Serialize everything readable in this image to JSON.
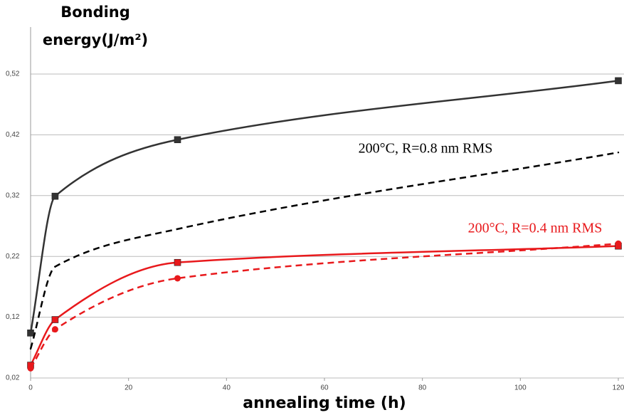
{
  "chart_data": {
    "type": "line",
    "ylabel": [
      "Bonding",
      "energy(J/m²)"
    ],
    "xlabel": "annealing time (h)",
    "xlim": [
      0,
      120
    ],
    "xticks": [
      0,
      20,
      40,
      60,
      80,
      100,
      120
    ],
    "ylim": [
      0.02,
      0.52
    ],
    "yticks": [
      {
        "value": 0.02,
        "label": "0,02"
      },
      {
        "value": 0.12,
        "label": "0,12"
      },
      {
        "value": 0.22,
        "label": "0,22"
      },
      {
        "value": 0.32,
        "label": "0,32"
      },
      {
        "value": 0.42,
        "label": "0,42"
      },
      {
        "value": 0.52,
        "label": "0,52"
      }
    ],
    "grid": true,
    "series": [
      {
        "color": "#333333",
        "dash": false,
        "marker": "square",
        "x": [
          0,
          5,
          30,
          120
        ],
        "values": [
          0.094,
          0.319,
          0.412,
          0.509
        ]
      },
      {
        "color": "#000000",
        "dash": true,
        "marker": "none",
        "x": [
          0,
          5,
          30,
          120
        ],
        "values": [
          0.068,
          0.203,
          0.265,
          0.391
        ]
      },
      {
        "color": "#e8191c",
        "dash": false,
        "marker": "square",
        "x": [
          0,
          5,
          30,
          120
        ],
        "values": [
          0.041,
          0.116,
          0.21,
          0.237
        ]
      },
      {
        "color": "#e8191c",
        "dash": true,
        "marker": "circle",
        "x": [
          0,
          5,
          30,
          120
        ],
        "values": [
          0.036,
          0.1,
          0.184,
          0.241
        ]
      }
    ],
    "annotations": [
      {
        "text": "200°C, R=0.8 nm RMS",
        "color": "#000000"
      },
      {
        "text": "200°C, R=0.4 nm RMS",
        "color": "#e8191c"
      }
    ]
  }
}
